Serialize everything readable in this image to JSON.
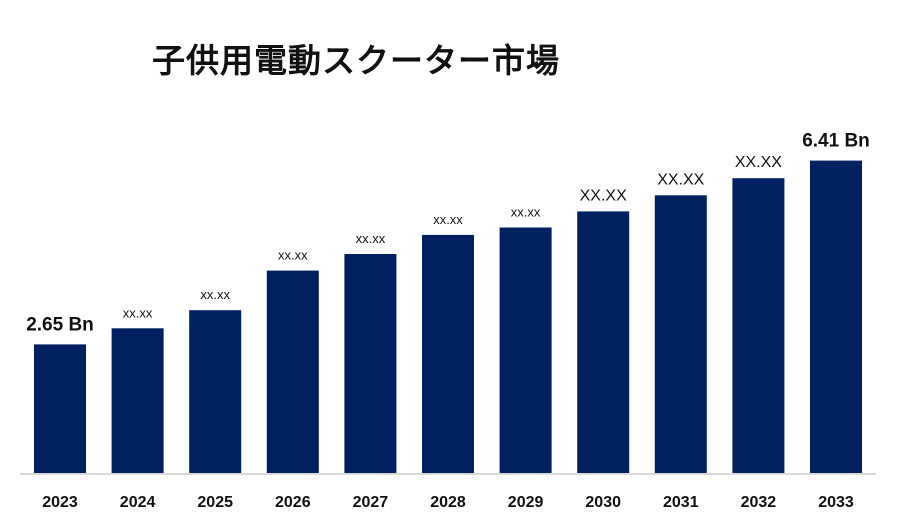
{
  "chart_data": {
    "type": "bar",
    "title": "子供用電動スクーター市場",
    "xlabel": "",
    "ylabel": "",
    "categories": [
      "2023",
      "2024",
      "2025",
      "2026",
      "2027",
      "2028",
      "2029",
      "2030",
      "2031",
      "2032",
      "2033"
    ],
    "values": [
      2.65,
      2.98,
      3.35,
      4.16,
      4.5,
      4.89,
      5.04,
      5.37,
      5.7,
      6.05,
      6.41
    ],
    "data_labels": [
      "2.65  Bn",
      "xx.xx",
      "xx.xx",
      "xx.xx",
      "xx.xx",
      "xx.xx",
      "xx.xx",
      "XX.XX",
      "XX.XX",
      "XX.XX",
      "6.41 Bn"
    ],
    "ylim": [
      0,
      6.8
    ],
    "grid": false,
    "legend": "none",
    "bar_color": "#002060",
    "axis_color": "#d9d9d9"
  }
}
